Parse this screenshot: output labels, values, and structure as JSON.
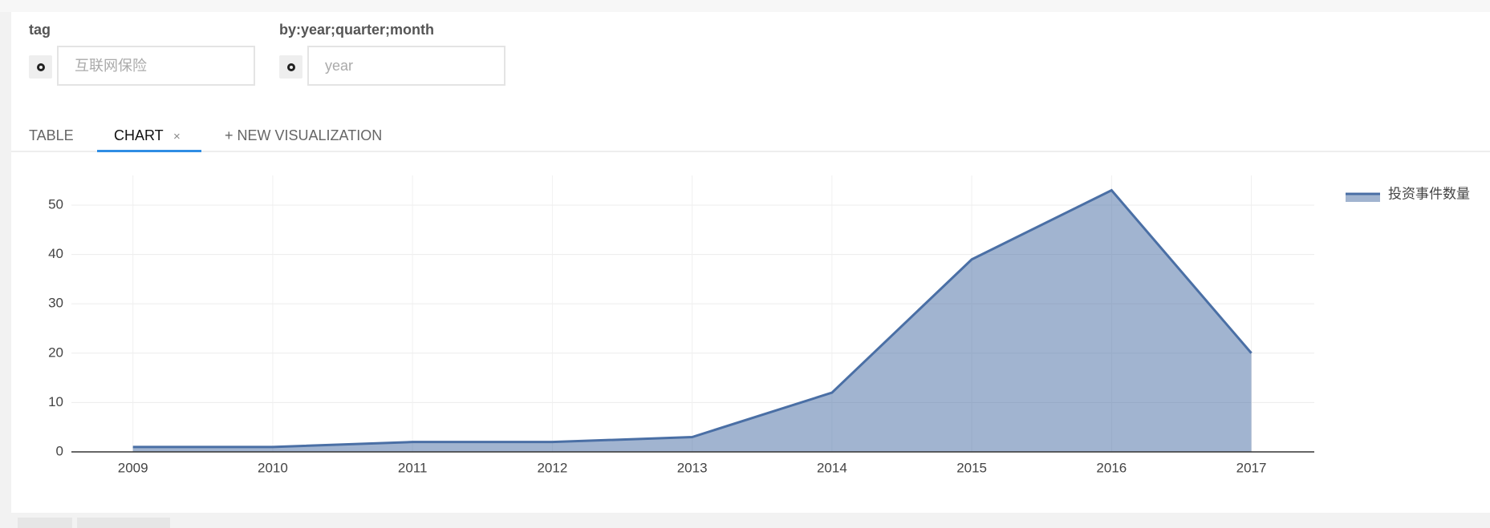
{
  "form": {
    "fields": [
      {
        "label": "tag",
        "placeholder": "互联网保险"
      },
      {
        "label": "by:year;quarter;month",
        "placeholder": "year"
      }
    ]
  },
  "tabs": {
    "items": [
      "TABLE",
      "CHART",
      "+ NEW VISUALIZATION"
    ],
    "close": "×"
  },
  "chart_data": {
    "type": "area",
    "x": [
      2009,
      2010,
      2011,
      2012,
      2013,
      2014,
      2015,
      2016,
      2017
    ],
    "series": [
      {
        "name": "投资事件数量",
        "color": "#4a6fa5",
        "values": [
          1,
          1,
          2,
          2,
          3,
          12,
          39,
          53,
          20
        ]
      }
    ],
    "xlim": [
      2008.56,
      2017.45
    ],
    "xticks": [
      2009,
      2010,
      2011,
      2012,
      2013,
      2014,
      2015,
      2016,
      2017
    ],
    "ylim": [
      0,
      56
    ],
    "yticks": [
      0,
      10,
      20,
      30,
      40,
      50
    ],
    "grid": true,
    "legend": "right"
  }
}
